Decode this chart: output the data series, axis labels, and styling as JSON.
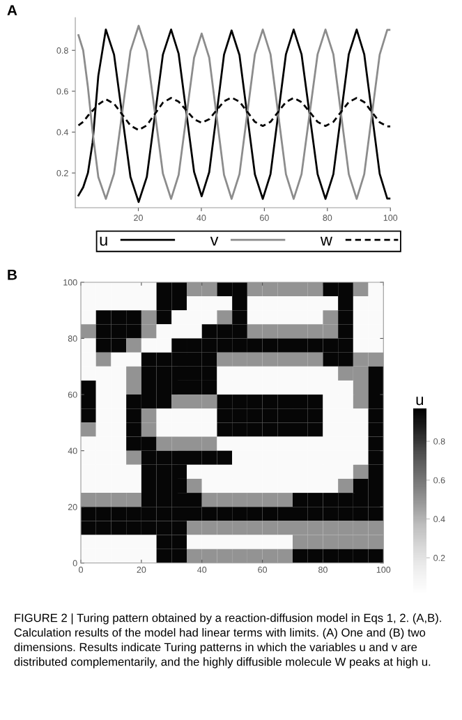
{
  "chart_data": [
    {
      "type": "line",
      "title": "A",
      "xlim": [
        0,
        100
      ],
      "ylim": [
        0.03,
        0.96
      ],
      "xticks": [
        20,
        40,
        60,
        80,
        100
      ],
      "yticks": [
        0.2,
        0.4,
        0.6,
        0.8
      ],
      "grid": false,
      "legend": "bottom",
      "marker": "none",
      "x": [
        1,
        2.5,
        4,
        5.5,
        7.3,
        9.7,
        12.3,
        14.9,
        17.5,
        20.1,
        22.7,
        25.25,
        27.8,
        30.4,
        32.8,
        35.25,
        37.7,
        40.1,
        42.5,
        44.85,
        47.2,
        49.6,
        52.1,
        54.55,
        57,
        59.5,
        61.95,
        64.4,
        66.85,
        69.3,
        71.8,
        74.35,
        76.9,
        79.4,
        81.9,
        84.35,
        86.8,
        89.3,
        91.7,
        94.15,
        96.6,
        99,
        100
      ],
      "series": [
        {
          "name": "u",
          "color": "#000000",
          "line_style": "solid",
          "values": [
            0.09,
            0.13,
            0.2,
            0.35,
            0.675,
            0.902,
            0.779,
            0.48,
            0.181,
            0.058,
            0.181,
            0.48,
            0.779,
            0.902,
            0.783,
            0.494,
            0.205,
            0.086,
            0.204,
            0.49,
            0.779,
            0.897,
            0.777,
            0.485,
            0.193,
            0.073,
            0.194,
            0.488,
            0.781,
            0.902,
            0.781,
            0.488,
            0.194,
            0.073,
            0.194,
            0.488,
            0.781,
            0.902,
            0.781,
            0.489,
            0.196,
            0.075,
            0.075
          ]
        },
        {
          "name": "v",
          "color": "#8c8c8c",
          "line_style": "solid",
          "values": [
            0.874,
            0.8,
            0.62,
            0.4,
            0.18,
            0.073,
            0.197,
            0.497,
            0.796,
            0.92,
            0.796,
            0.497,
            0.197,
            0.073,
            0.191,
            0.478,
            0.764,
            0.882,
            0.764,
            0.478,
            0.191,
            0.073,
            0.194,
            0.488,
            0.781,
            0.902,
            0.781,
            0.488,
            0.194,
            0.073,
            0.194,
            0.488,
            0.781,
            0.902,
            0.781,
            0.488,
            0.194,
            0.073,
            0.194,
            0.487,
            0.779,
            0.9,
            0.9
          ]
        },
        {
          "name": "w",
          "color": "#000000",
          "line_style": "dashed",
          "values": [
            0.433,
            0.45,
            0.48,
            0.505,
            0.535,
            0.561,
            0.539,
            0.486,
            0.432,
            0.41,
            0.433,
            0.489,
            0.544,
            0.567,
            0.549,
            0.506,
            0.463,
            0.445,
            0.463,
            0.507,
            0.551,
            0.569,
            0.549,
            0.5,
            0.45,
            0.43,
            0.45,
            0.499,
            0.547,
            0.567,
            0.547,
            0.499,
            0.45,
            0.43,
            0.45,
            0.499,
            0.547,
            0.567,
            0.547,
            0.498,
            0.448,
            0.428,
            0.428
          ]
        }
      ]
    },
    {
      "type": "heatmap",
      "title": "B",
      "xlim": [
        0,
        100
      ],
      "ylim": [
        0,
        100
      ],
      "xticks": [
        0,
        20,
        40,
        60,
        80,
        100
      ],
      "yticks": [
        0,
        20,
        40,
        60,
        80,
        100
      ],
      "clabel": "u",
      "clim": [
        0.01,
        0.97
      ],
      "cticks": [
        0.2,
        0.4,
        0.6,
        0.8
      ],
      "grid": false,
      "cells": [
        [
          0.05,
          0.05,
          0.05,
          0.05,
          0.05,
          0.95,
          0.95,
          0.5,
          0.5,
          0.95,
          0.95,
          0.5,
          0.5,
          0.5,
          0.5,
          0.5,
          0.95,
          0.95,
          0.5,
          0.05
        ],
        [
          0.05,
          0.05,
          0.05,
          0.05,
          0.05,
          0.95,
          0.95,
          0.05,
          0.05,
          0.05,
          0.95,
          0.05,
          0.05,
          0.05,
          0.05,
          0.05,
          0.05,
          0.95,
          0.05,
          0.05
        ],
        [
          0.05,
          0.95,
          0.95,
          0.95,
          0.5,
          0.95,
          0.05,
          0.05,
          0.05,
          0.5,
          0.95,
          0.05,
          0.05,
          0.05,
          0.05,
          0.05,
          0.5,
          0.95,
          0.05,
          0.05
        ],
        [
          0.5,
          0.95,
          0.95,
          0.95,
          0.5,
          0.05,
          0.05,
          0.05,
          0.95,
          0.95,
          0.95,
          0.5,
          0.5,
          0.5,
          0.5,
          0.5,
          0.5,
          0.95,
          0.05,
          0.05
        ],
        [
          0.05,
          0.95,
          0.95,
          0.5,
          0.05,
          0.05,
          0.95,
          0.95,
          0.95,
          0.95,
          0.95,
          0.95,
          0.95,
          0.95,
          0.95,
          0.95,
          0.95,
          0.95,
          0.05,
          0.05
        ],
        [
          0.05,
          0.5,
          0.05,
          0.05,
          0.95,
          0.95,
          0.95,
          0.95,
          0.95,
          0.5,
          0.5,
          0.5,
          0.5,
          0.5,
          0.5,
          0.5,
          0.95,
          0.95,
          0.5,
          0.5
        ],
        [
          0.05,
          0.05,
          0.05,
          0.5,
          0.95,
          0.95,
          0.95,
          0.95,
          0.95,
          0.05,
          0.05,
          0.05,
          0.05,
          0.05,
          0.05,
          0.05,
          0.05,
          0.5,
          0.5,
          0.95
        ],
        [
          0.95,
          0.05,
          0.05,
          0.5,
          0.95,
          0.95,
          0.95,
          0.95,
          0.95,
          0.05,
          0.05,
          0.05,
          0.05,
          0.05,
          0.05,
          0.05,
          0.05,
          0.05,
          0.5,
          0.95
        ],
        [
          0.95,
          0.05,
          0.05,
          0.95,
          0.95,
          0.95,
          0.5,
          0.5,
          0.5,
          0.95,
          0.95,
          0.95,
          0.95,
          0.95,
          0.95,
          0.95,
          0.05,
          0.05,
          0.5,
          0.95
        ],
        [
          0.95,
          0.05,
          0.05,
          0.95,
          0.5,
          0.05,
          0.05,
          0.05,
          0.05,
          0.95,
          0.95,
          0.95,
          0.95,
          0.95,
          0.95,
          0.95,
          0.05,
          0.05,
          0.05,
          0.95
        ],
        [
          0.5,
          0.05,
          0.05,
          0.95,
          0.5,
          0.05,
          0.05,
          0.05,
          0.05,
          0.95,
          0.95,
          0.95,
          0.95,
          0.95,
          0.95,
          0.95,
          0.05,
          0.05,
          0.05,
          0.95
        ],
        [
          0.05,
          0.05,
          0.05,
          0.95,
          0.95,
          0.5,
          0.5,
          0.5,
          0.5,
          0.05,
          0.05,
          0.05,
          0.05,
          0.05,
          0.05,
          0.05,
          0.05,
          0.05,
          0.05,
          0.95
        ],
        [
          0.05,
          0.05,
          0.05,
          0.5,
          0.95,
          0.95,
          0.95,
          0.95,
          0.95,
          0.95,
          0.05,
          0.05,
          0.05,
          0.05,
          0.05,
          0.05,
          0.05,
          0.05,
          0.05,
          0.95
        ],
        [
          0.05,
          0.05,
          0.05,
          0.05,
          0.95,
          0.95,
          0.95,
          0.05,
          0.05,
          0.05,
          0.05,
          0.05,
          0.05,
          0.05,
          0.05,
          0.05,
          0.05,
          0.05,
          0.5,
          0.95
        ],
        [
          0.05,
          0.05,
          0.05,
          0.05,
          0.95,
          0.95,
          0.95,
          0.5,
          0.05,
          0.05,
          0.05,
          0.05,
          0.05,
          0.05,
          0.05,
          0.05,
          0.05,
          0.5,
          0.95,
          0.95
        ],
        [
          0.5,
          0.5,
          0.5,
          0.5,
          0.95,
          0.95,
          0.95,
          0.95,
          0.5,
          0.5,
          0.5,
          0.5,
          0.5,
          0.5,
          0.95,
          0.95,
          0.95,
          0.95,
          0.95,
          0.95
        ],
        [
          0.95,
          0.95,
          0.95,
          0.95,
          0.95,
          0.95,
          0.95,
          0.95,
          0.95,
          0.95,
          0.95,
          0.95,
          0.95,
          0.95,
          0.95,
          0.95,
          0.95,
          0.95,
          0.95,
          0.95
        ],
        [
          0.95,
          0.95,
          0.95,
          0.95,
          0.95,
          0.95,
          0.95,
          0.5,
          0.5,
          0.5,
          0.5,
          0.5,
          0.5,
          0.5,
          0.5,
          0.5,
          0.5,
          0.5,
          0.5,
          0.5
        ],
        [
          0.05,
          0.05,
          0.05,
          0.05,
          0.05,
          0.95,
          0.95,
          0.05,
          0.05,
          0.05,
          0.05,
          0.05,
          0.05,
          0.05,
          0.5,
          0.5,
          0.5,
          0.5,
          0.5,
          0.5
        ],
        [
          0.05,
          0.05,
          0.05,
          0.05,
          0.05,
          0.95,
          0.95,
          0.5,
          0.5,
          0.5,
          0.5,
          0.5,
          0.5,
          0.5,
          0.95,
          0.95,
          0.95,
          0.95,
          0.95,
          0.95
        ]
      ],
      "annotations": [
        "FIGURE 2 | Turing pattern obtained by a reaction-diffusion model in Eqs 1, 2. (A,B). Calculation results of the model had linear terms with limits. (A) One and (B) two dimensions. Results indicate Turing patterns in which the variables u and v are distributed complementarily, and the highly diffusible molecule W peaks at high u."
      ]
    }
  ]
}
